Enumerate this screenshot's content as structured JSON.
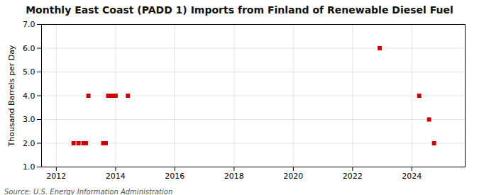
{
  "chart_data": {
    "type": "scatter",
    "title": "Monthly East Coast (PADD 1) Imports from Finland of Renewable Diesel Fuel",
    "ylabel": "Thousand Barrels per Day",
    "source": "Source: U.S. Energy Information Administration",
    "x": [
      2012.583,
      2012.75,
      2012.917,
      2013.0,
      2013.083,
      2013.583,
      2013.667,
      2013.75,
      2013.833,
      2013.917,
      2014.0,
      2014.417,
      2022.917,
      2024.25,
      2024.583,
      2024.75
    ],
    "values": [
      2.0,
      2.0,
      2.0,
      2.0,
      4.0,
      2.0,
      2.0,
      4.0,
      4.0,
      4.0,
      4.0,
      4.0,
      6.0,
      4.0,
      3.0,
      2.0
    ],
    "color": "#cc0000",
    "marker": "square",
    "xlim": [
      2011.5,
      2025.8
    ],
    "xticks": [
      2012,
      2014,
      2016,
      2018,
      2020,
      2022,
      2024
    ],
    "ylim": [
      1.0,
      7.0
    ],
    "yticks": [
      {
        "value": 1,
        "label": "1.0"
      },
      {
        "value": 2,
        "label": "2.0"
      },
      {
        "value": 3,
        "label": "3.0"
      },
      {
        "value": 4,
        "label": "4.0"
      },
      {
        "value": 5,
        "label": "5.0"
      },
      {
        "value": 6,
        "label": "6.0"
      },
      {
        "value": 7,
        "label": "7.0"
      }
    ],
    "grid": true
  }
}
